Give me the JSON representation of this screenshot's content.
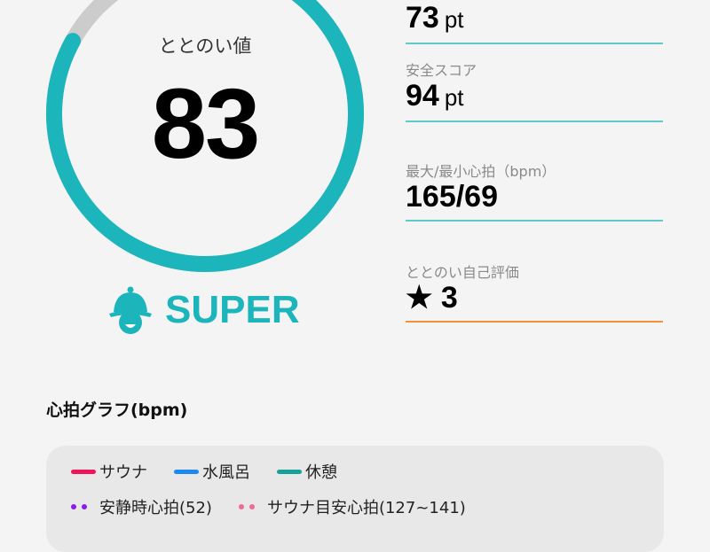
{
  "gauge": {
    "label": "ととのい値",
    "value": "83",
    "progress": 0.83,
    "color": "#1cb5bc",
    "track_color": "#cccccc"
  },
  "rank": {
    "label": "SUPER",
    "icon": "sauna-hat-mascot-icon",
    "color": "#1cb5bc"
  },
  "stats": [
    {
      "label": "",
      "value": "73",
      "unit": "pt"
    },
    {
      "label": "安全スコア",
      "value": "94",
      "unit": "pt"
    },
    {
      "label": "最大/最小心拍（bpm）",
      "value": "165/69",
      "unit": ""
    },
    {
      "label": "ととのい自己評価",
      "value": "★ 3",
      "unit": ""
    }
  ],
  "graph": {
    "title": "心拍グラフ(bpm)",
    "legend": [
      {
        "label": "サウナ",
        "color": "#f0145a",
        "style": "solid"
      },
      {
        "label": "水風呂",
        "color": "#1e88f0",
        "style": "solid"
      },
      {
        "label": "休憩",
        "color": "#16a29a",
        "style": "solid"
      },
      {
        "label": "安静時心拍(52)",
        "color": "#8a1cf0",
        "style": "dotted"
      },
      {
        "label": "サウナ目安心拍(127~141)",
        "color": "#f06a96",
        "style": "dotted"
      }
    ]
  }
}
